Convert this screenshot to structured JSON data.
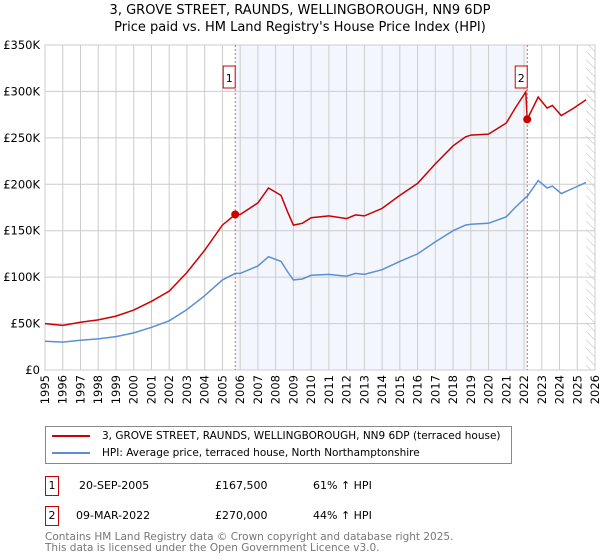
{
  "chart_data": {
    "type": "line",
    "title": "3, GROVE STREET, RAUNDS, WELLINGBOROUGH, NN9 6DP",
    "subtitle": "Price paid vs. HM Land Registry's House Price Index (HPI)",
    "xlim": [
      1995,
      2026
    ],
    "ylim": [
      0,
      350000
    ],
    "yticks": [
      {
        "v": 0,
        "label": "£0"
      },
      {
        "v": 50000,
        "label": "£50K"
      },
      {
        "v": 100000,
        "label": "£100K"
      },
      {
        "v": 150000,
        "label": "£150K"
      },
      {
        "v": 200000,
        "label": "£200K"
      },
      {
        "v": 250000,
        "label": "£250K"
      },
      {
        "v": 300000,
        "label": "£300K"
      },
      {
        "v": 350000,
        "label": "£350K"
      }
    ],
    "xticks": [
      "1995",
      "1996",
      "1997",
      "1998",
      "1999",
      "2000",
      "2001",
      "2002",
      "2003",
      "2004",
      "2005",
      "2006",
      "2007",
      "2008",
      "2009",
      "2010",
      "2011",
      "2012",
      "2013",
      "2014",
      "2015",
      "2016",
      "2017",
      "2018",
      "2019",
      "2020",
      "2021",
      "2022",
      "2023",
      "2024",
      "2025",
      "2026"
    ],
    "grid": true,
    "shaded_range": [
      2005.72,
      2022.18
    ],
    "forecast_hatch_from": 2025.5,
    "series": [
      {
        "name": "3, GROVE STREET, RAUNDS, WELLINGBOROUGH, NN9 6DP (terraced house)",
        "color": "#cc0000",
        "x": [
          1995,
          1996,
          1997,
          1998,
          1999,
          2000,
          2001,
          2002,
          2003,
          2004,
          2005,
          2005.72,
          2006,
          2007,
          2007.6,
          2008.3,
          2008.7,
          2009,
          2009.5,
          2010,
          2011,
          2012,
          2012.5,
          2013,
          2014,
          2015,
          2016,
          2017,
          2018,
          2018.7,
          2019,
          2020,
          2021,
          2021.5,
          2022.1,
          2022.18,
          2022.8,
          2023.3,
          2023.6,
          2024.1,
          2024.8,
          2025.5
        ],
        "y": [
          50000,
          48000,
          51500,
          54000,
          58000,
          64500,
          74000,
          85000,
          105000,
          129000,
          156000,
          167500,
          167500,
          180000,
          196000,
          188000,
          169000,
          156000,
          158000,
          164000,
          166000,
          163000,
          167000,
          166000,
          174000,
          188000,
          201000,
          222000,
          241500,
          251000,
          253000,
          254000,
          266000,
          282000,
          299500,
          270000,
          294000,
          282000,
          285000,
          274000,
          282000,
          291000
        ]
      },
      {
        "name": "HPI: Average price, terraced house, North Northamptonshire",
        "color": "#5b8fd4",
        "x": [
          1995,
          1996,
          1997,
          1998,
          1999,
          2000,
          2001,
          2002,
          2003,
          2004,
          2005,
          2005.72,
          2006,
          2007,
          2007.6,
          2008.3,
          2008.7,
          2009,
          2009.5,
          2010,
          2011,
          2012,
          2012.5,
          2013,
          2014,
          2015,
          2016,
          2017,
          2018,
          2018.7,
          2019,
          2020,
          2021,
          2021.5,
          2022.1,
          2022.18,
          2022.8,
          2023.3,
          2023.6,
          2024.1,
          2024.8,
          2025.5
        ],
        "y": [
          31000,
          30000,
          32000,
          33500,
          36000,
          40000,
          46000,
          53000,
          65000,
          80000,
          97000,
          104000,
          104000,
          112000,
          122000,
          117000,
          105000,
          97000,
          98000,
          102000,
          103000,
          101000,
          104000,
          103000,
          108000,
          117000,
          125000,
          138000,
          150000,
          156000,
          157000,
          158000,
          165000,
          175000,
          186000,
          187000,
          204000,
          196000,
          198000,
          190000,
          196000,
          202000
        ]
      }
    ],
    "sales": [
      {
        "id": "1",
        "x": 2005.72,
        "price": 167500,
        "date": "20-SEP-2005",
        "price_label": "£167,500",
        "hpi": "61% ↑ HPI"
      },
      {
        "id": "2",
        "x": 2022.18,
        "price": 270000,
        "date": "09-MAR-2022",
        "price_label": "£270,000",
        "hpi": "44% ↑ HPI"
      }
    ]
  },
  "footer": {
    "line1": "Contains HM Land Registry data © Crown copyright and database right 2025.",
    "line2": "This data is licensed under the Open Government Licence v3.0."
  }
}
